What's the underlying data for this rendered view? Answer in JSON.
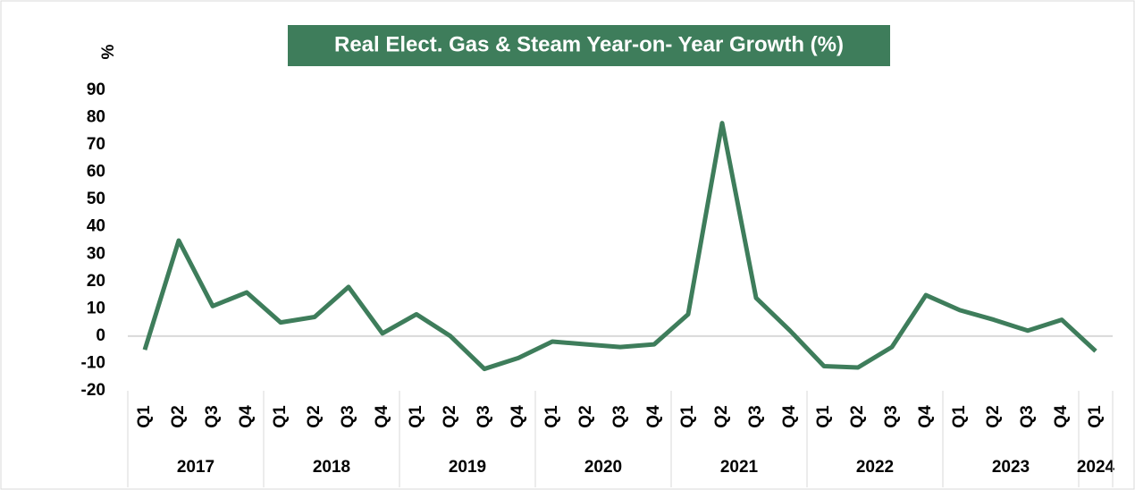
{
  "chart_data": {
    "type": "line",
    "title": "Real Elect. Gas & Steam Year-on- Year Growth (%)",
    "y_label": "%",
    "categories": [
      "Q1",
      "Q2",
      "Q3",
      "Q4",
      "Q1",
      "Q2",
      "Q3",
      "Q4",
      "Q1",
      "Q2",
      "Q3",
      "Q4",
      "Q1",
      "Q2",
      "Q3",
      "Q4",
      "Q1",
      "Q2",
      "Q3",
      "Q4",
      "Q1",
      "Q2",
      "Q3",
      "Q4",
      "Q1",
      "Q2",
      "Q3",
      "Q4",
      "Q1"
    ],
    "groups": [
      {
        "name": "2017",
        "size": 4
      },
      {
        "name": "2018",
        "size": 4
      },
      {
        "name": "2019",
        "size": 4
      },
      {
        "name": "2020",
        "size": 4
      },
      {
        "name": "2021",
        "size": 4
      },
      {
        "name": "2022",
        "size": 4
      },
      {
        "name": "2023",
        "size": 4
      },
      {
        "name": "2024",
        "size": 1
      }
    ],
    "series": [
      {
        "name": "Real Elect. Gas & Steam Year-on- Year Growth",
        "color": "#3e7d5b",
        "values": [
          -5,
          35,
          11,
          16,
          5,
          7,
          18,
          1,
          8,
          0,
          -12,
          -8,
          -2,
          -3,
          -4,
          -3,
          8,
          78,
          14,
          2,
          -11,
          -11.5,
          -4,
          15,
          9.5,
          6,
          2,
          6,
          -5.5
        ]
      }
    ],
    "ylim": [
      -20,
      90
    ],
    "yticks": [
      -20,
      -10,
      0,
      10,
      20,
      30,
      40,
      50,
      60,
      70,
      80,
      90
    ]
  }
}
